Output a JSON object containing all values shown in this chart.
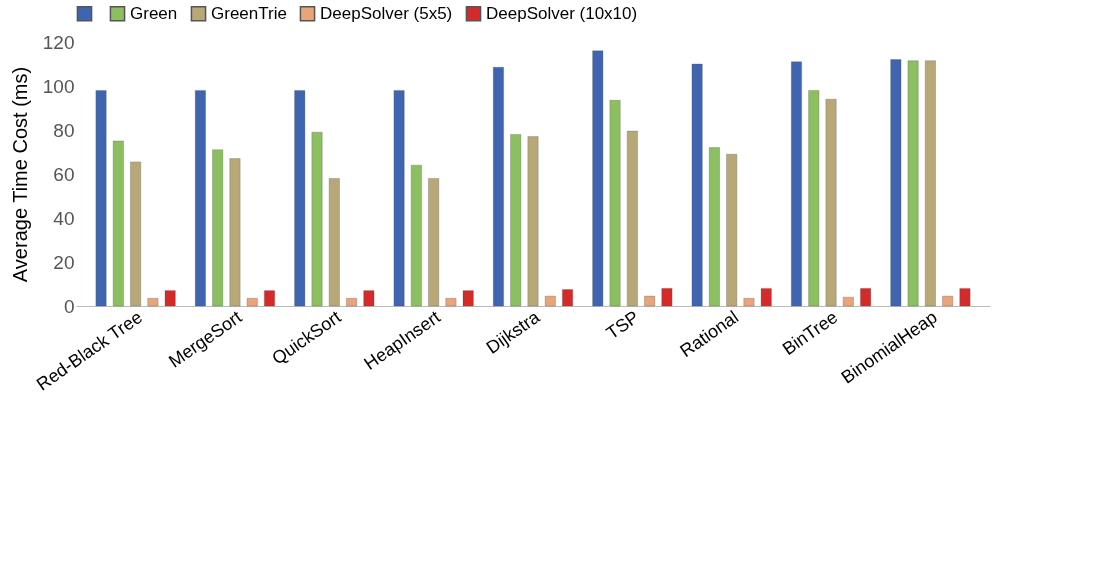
{
  "chart_data": {
    "type": "bar",
    "ylabel": "Average Time Cost (ms)",
    "categories": [
      "Red-Black Tree",
      "MergeSort",
      "QuickSort",
      "HeapInsert",
      "Dijkstra",
      "TSP",
      "Rational",
      "BinTree",
      "BinomialHeap"
    ],
    "series": [
      {
        "color": "#3f64b0",
        "values": [
          98,
          98,
          98,
          98,
          108.5,
          116,
          110,
          111,
          112
        ]
      },
      {
        "name": "Green",
        "color": "#8cbf5f",
        "values": [
          75,
          71,
          79,
          64,
          78,
          93.5,
          72,
          98,
          111.5
        ]
      },
      {
        "name": "GreenTrie",
        "color": "#b8a878",
        "values": [
          65.5,
          67,
          58,
          58,
          77,
          79.5,
          69,
          94,
          111.5
        ]
      },
      {
        "name": "DeepSolver (5x5)",
        "color": "#e9a47a",
        "values": [
          3.5,
          3.5,
          3.5,
          3.5,
          4.5,
          4.5,
          3.5,
          4,
          4.5
        ]
      },
      {
        "name": "DeepSolver (10x10)",
        "color": "#d42a2a",
        "values": [
          7,
          7,
          7,
          7,
          7.5,
          8,
          8,
          8,
          8
        ]
      }
    ],
    "ylim": [
      0,
      120
    ],
    "yticks": [
      0,
      20,
      40,
      60,
      80,
      100,
      120
    ],
    "grid": false,
    "legend": "top"
  }
}
